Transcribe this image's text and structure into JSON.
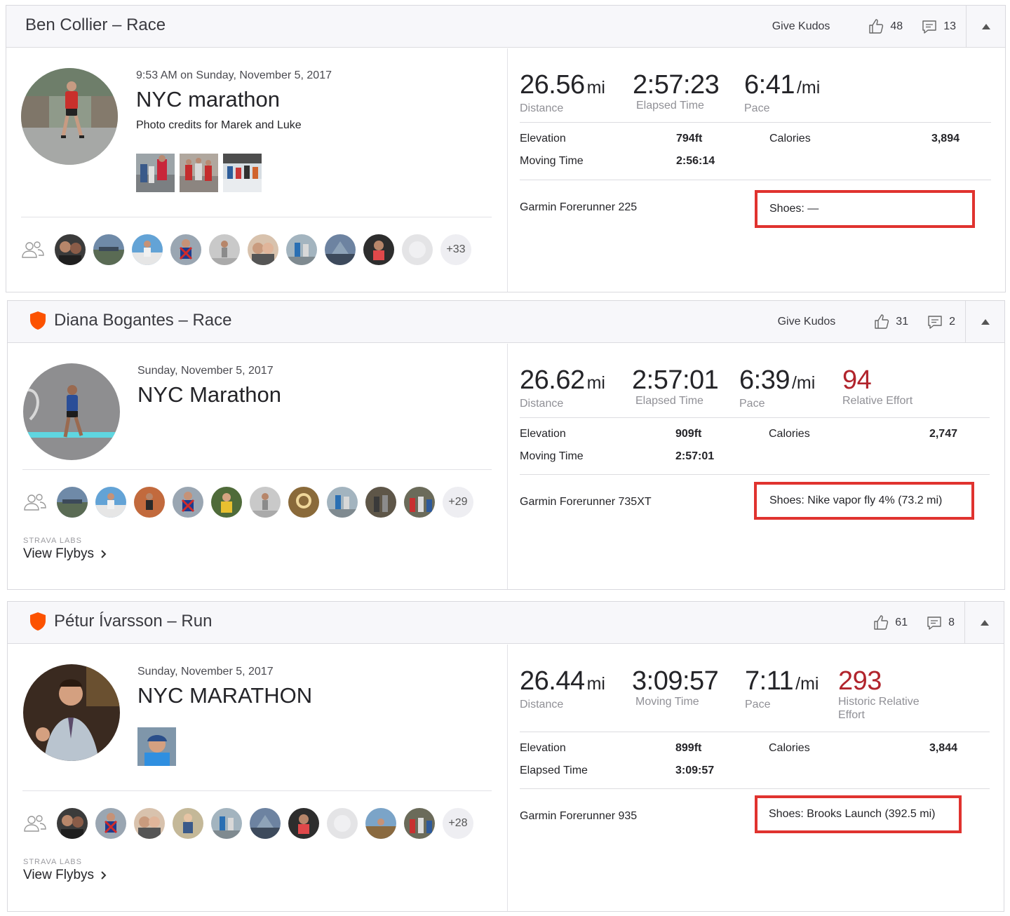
{
  "header_actions": {
    "give_kudos": "Give Kudos"
  },
  "activities": [
    {
      "title": "Ben Collier – Race",
      "kudos_count": "48",
      "comment_count": "13",
      "date": "9:53 AM on Sunday, November 5, 2017",
      "name": "NYC marathon",
      "description": "Photo credits for Marek and Luke",
      "group_more": "+33",
      "stats": [
        {
          "value": "26.56",
          "unit": "mi",
          "label": "Distance"
        },
        {
          "value": "2:57:23",
          "unit": "",
          "label": "Elapsed Time"
        },
        {
          "value": "6:41",
          "unit": "/mi",
          "label": "Pace"
        }
      ],
      "details": {
        "elevation_label": "Elevation",
        "elevation": "794ft",
        "calories_label": "Calories",
        "calories": "3,894",
        "time_label": "Moving Time",
        "time": "2:56:14"
      },
      "device": "Garmin Forerunner 225",
      "shoes": "Shoes: —"
    },
    {
      "title": "Diana Bogantes – Race",
      "kudos_count": "31",
      "comment_count": "2",
      "date": "Sunday, November 5, 2017",
      "name": "NYC Marathon",
      "group_more": "+29",
      "labs": "STRAVA LABS",
      "flybys": "View Flybys",
      "stats": [
        {
          "value": "26.62",
          "unit": "mi",
          "label": "Distance"
        },
        {
          "value": "2:57:01",
          "unit": "",
          "label": "Elapsed Time"
        },
        {
          "value": "6:39",
          "unit": "/mi",
          "label": "Pace"
        },
        {
          "value": "94",
          "unit": "",
          "label": "Relative Effort"
        }
      ],
      "details": {
        "elevation_label": "Elevation",
        "elevation": "909ft",
        "calories_label": "Calories",
        "calories": "2,747",
        "time_label": "Moving Time",
        "time": "2:57:01"
      },
      "device": "Garmin Forerunner 735XT",
      "shoes": "Shoes: Nike vapor fly 4% (73.2 mi)"
    },
    {
      "title": "Pétur Ívarsson – Run",
      "kudos_count": "61",
      "comment_count": "8",
      "date": "Sunday, November 5, 2017",
      "name": "NYC MARATHON",
      "group_more": "+28",
      "labs": "STRAVA LABS",
      "flybys": "View Flybys",
      "stats": [
        {
          "value": "26.44",
          "unit": "mi",
          "label": "Distance"
        },
        {
          "value": "3:09:57",
          "unit": "",
          "label": "Moving Time"
        },
        {
          "value": "7:11",
          "unit": "/mi",
          "label": "Pace"
        },
        {
          "value": "293",
          "unit": "",
          "label": "Historic Relative",
          "label2": "Effort"
        }
      ],
      "details": {
        "elevation_label": "Elevation",
        "elevation": "899ft",
        "calories_label": "Calories",
        "calories": "3,844",
        "time_label": "Elapsed Time",
        "time": "3:09:57"
      },
      "device": "Garmin Forerunner 935",
      "shoes": "Shoes: Brooks Launch (392.5 mi)"
    }
  ],
  "colors": {
    "brand_orange": "#fc5200",
    "effort_red": "#b1242c",
    "highlight_red": "#e0332f"
  }
}
